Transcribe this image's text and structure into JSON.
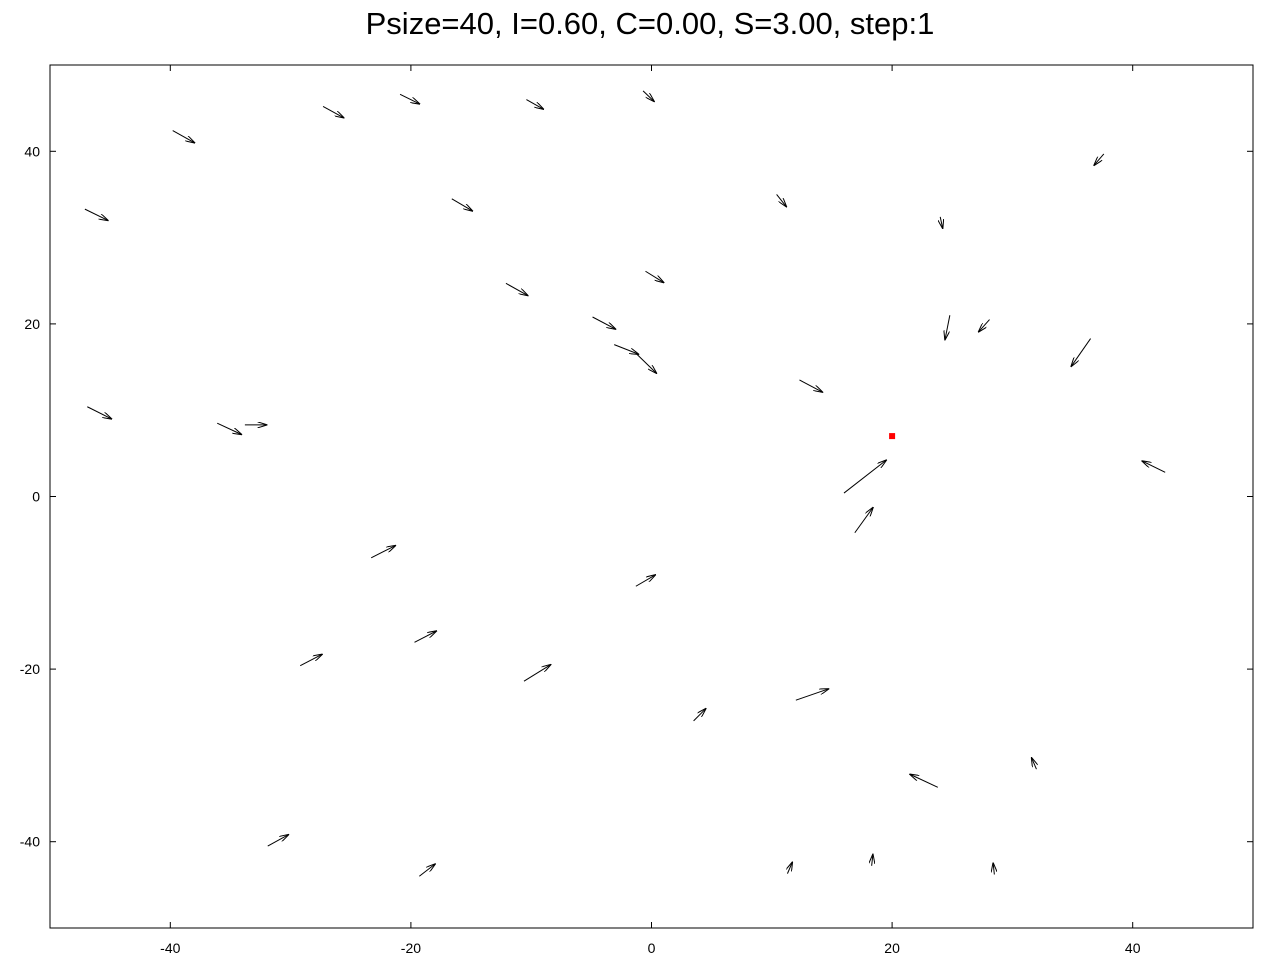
{
  "chart_data": {
    "type": "quiver",
    "title": "Psize=40, I=0.60, C=0.00, S=3.00, step:1",
    "xlim": [
      -50,
      50
    ],
    "ylim": [
      -50,
      50
    ],
    "xticks": [
      -40,
      -20,
      0,
      20,
      40
    ],
    "yticks": [
      -40,
      -20,
      0,
      20,
      40
    ],
    "grid": false,
    "legend": "none",
    "arrow_color": "#000000",
    "marker_color": "#ff0000",
    "target": {
      "x": 20.0,
      "y": 7.0
    },
    "arrows": [
      {
        "x": -0.7,
        "y": 47.0,
        "dx": 0.9,
        "dy": -1.2
      },
      {
        "x": -20.9,
        "y": 46.6,
        "dx": 1.6,
        "dy": -1.1
      },
      {
        "x": -10.4,
        "y": 46.0,
        "dx": 1.4,
        "dy": -1.1
      },
      {
        "x": -27.3,
        "y": 45.2,
        "dx": 1.7,
        "dy": -1.3
      },
      {
        "x": -39.8,
        "y": 42.4,
        "dx": 1.8,
        "dy": -1.4
      },
      {
        "x": 37.6,
        "y": 39.7,
        "dx": -0.8,
        "dy": -1.3
      },
      {
        "x": -47.1,
        "y": 33.3,
        "dx": 1.9,
        "dy": -1.3
      },
      {
        "x": -16.6,
        "y": 34.5,
        "dx": 1.7,
        "dy": -1.4
      },
      {
        "x": 10.4,
        "y": 35.0,
        "dx": 0.8,
        "dy": -1.4
      },
      {
        "x": 24.0,
        "y": 32.4,
        "dx": 0.2,
        "dy": -1.3
      },
      {
        "x": -0.5,
        "y": 26.1,
        "dx": 1.5,
        "dy": -1.3
      },
      {
        "x": -12.1,
        "y": 24.7,
        "dx": 1.8,
        "dy": -1.4
      },
      {
        "x": -4.9,
        "y": 20.8,
        "dx": 1.9,
        "dy": -1.4
      },
      {
        "x": 24.8,
        "y": 21.0,
        "dx": -0.4,
        "dy": -2.8
      },
      {
        "x": 28.1,
        "y": 20.5,
        "dx": -0.9,
        "dy": -1.4
      },
      {
        "x": 36.5,
        "y": 18.3,
        "dx": -1.6,
        "dy": -3.2
      },
      {
        "x": -3.1,
        "y": 17.6,
        "dx": 2.0,
        "dy": -1.1
      },
      {
        "x": -1.3,
        "y": 16.6,
        "dx": 1.7,
        "dy": -2.3
      },
      {
        "x": 12.3,
        "y": 13.5,
        "dx": 1.9,
        "dy": -1.4
      },
      {
        "x": -46.9,
        "y": 10.4,
        "dx": 2.0,
        "dy": -1.4
      },
      {
        "x": -36.1,
        "y": 8.5,
        "dx": 2.0,
        "dy": -1.3
      },
      {
        "x": -33.8,
        "y": 8.3,
        "dx": 1.8,
        "dy": 0.0
      },
      {
        "x": 42.7,
        "y": 2.8,
        "dx": -1.9,
        "dy": 1.3
      },
      {
        "x": 16.0,
        "y": 0.4,
        "dx": 3.5,
        "dy": 3.8
      },
      {
        "x": 16.9,
        "y": -4.2,
        "dx": 1.5,
        "dy": 2.9
      },
      {
        "x": -23.3,
        "y": -7.1,
        "dx": 2.0,
        "dy": 1.4
      },
      {
        "x": -1.3,
        "y": -10.4,
        "dx": 1.6,
        "dy": 1.3
      },
      {
        "x": -19.7,
        "y": -16.9,
        "dx": 1.8,
        "dy": 1.3
      },
      {
        "x": -29.2,
        "y": -19.6,
        "dx": 1.8,
        "dy": 1.3
      },
      {
        "x": -10.6,
        "y": -21.4,
        "dx": 2.2,
        "dy": 1.9
      },
      {
        "x": 12.0,
        "y": -23.6,
        "dx": 2.7,
        "dy": 1.3
      },
      {
        "x": 3.5,
        "y": -26.0,
        "dx": 1.0,
        "dy": 1.4
      },
      {
        "x": 32.0,
        "y": -31.6,
        "dx": -0.4,
        "dy": 1.3
      },
      {
        "x": 23.8,
        "y": -33.7,
        "dx": -2.3,
        "dy": 1.5
      },
      {
        "x": -31.9,
        "y": -40.5,
        "dx": 1.7,
        "dy": 1.3
      },
      {
        "x": -19.3,
        "y": -44.0,
        "dx": 1.3,
        "dy": 1.4
      },
      {
        "x": 11.3,
        "y": -43.7,
        "dx": 0.4,
        "dy": 1.3
      },
      {
        "x": 18.3,
        "y": -42.8,
        "dx": 0.1,
        "dy": 1.3
      },
      {
        "x": 28.5,
        "y": -43.8,
        "dx": -0.1,
        "dy": 1.3
      }
    ]
  }
}
